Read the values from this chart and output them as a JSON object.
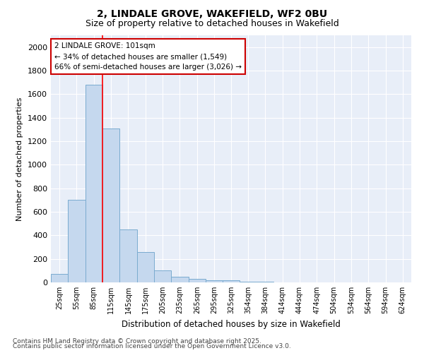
{
  "title1": "2, LINDALE GROVE, WAKEFIELD, WF2 0BU",
  "title2": "Size of property relative to detached houses in Wakefield",
  "xlabel": "Distribution of detached houses by size in Wakefield",
  "ylabel": "Number of detached properties",
  "categories": [
    "25sqm",
    "55sqm",
    "85sqm",
    "115sqm",
    "145sqm",
    "175sqm",
    "205sqm",
    "235sqm",
    "265sqm",
    "295sqm",
    "325sqm",
    "354sqm",
    "384sqm",
    "414sqm",
    "444sqm",
    "474sqm",
    "504sqm",
    "534sqm",
    "564sqm",
    "594sqm",
    "624sqm"
  ],
  "bar_starts": [
    10,
    40,
    70,
    100,
    130,
    160,
    190,
    220,
    250,
    280,
    310,
    339,
    369,
    399,
    429,
    459,
    489,
    519,
    549,
    579,
    609
  ],
  "bar_widths": [
    30,
    30,
    30,
    30,
    30,
    30,
    30,
    30,
    30,
    30,
    29,
    30,
    30,
    30,
    30,
    30,
    30,
    30,
    30,
    30,
    30
  ],
  "values": [
    70,
    700,
    1680,
    1310,
    450,
    260,
    100,
    50,
    30,
    20,
    20,
    5,
    5,
    3,
    3,
    2,
    2,
    2,
    2,
    2,
    2
  ],
  "bar_color": "#c5d8ee",
  "bar_edge_color": "#7aabcf",
  "red_line_x": 100,
  "ylim": [
    0,
    2100
  ],
  "yticks": [
    0,
    200,
    400,
    600,
    800,
    1000,
    1200,
    1400,
    1600,
    1800,
    2000
  ],
  "annotation_text": "2 LINDALE GROVE: 101sqm\n← 34% of detached houses are smaller (1,549)\n66% of semi-detached houses are larger (3,026) →",
  "annotation_box_color": "#ffffff",
  "annotation_box_edge": "#cc0000",
  "plot_bg_color": "#e8eef8",
  "fig_bg_color": "#ffffff",
  "grid_color": "#ffffff",
  "footnote1": "Contains HM Land Registry data © Crown copyright and database right 2025.",
  "footnote2": "Contains public sector information licensed under the Open Government Licence v3.0."
}
